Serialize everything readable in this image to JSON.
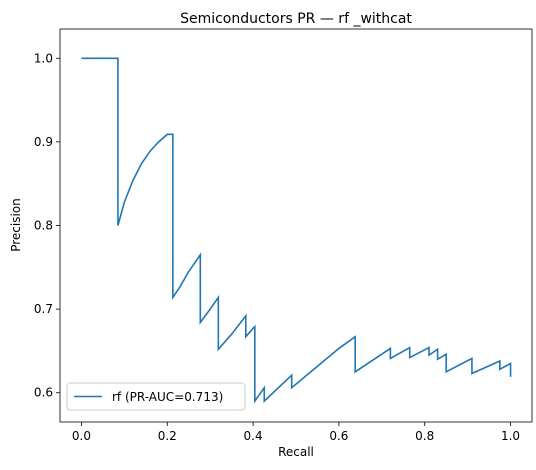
{
  "chart_data": {
    "type": "line",
    "title": "Semiconductors PR — rf _withcat",
    "xlabel": "Recall",
    "ylabel": "Precision",
    "xlim": [
      -0.05,
      1.05
    ],
    "ylim": [
      0.565,
      1.035
    ],
    "xticks": [
      0.0,
      0.2,
      0.4,
      0.6,
      0.8,
      1.0
    ],
    "xtick_labels": [
      "0.0",
      "0.2",
      "0.4",
      "0.6",
      "0.8",
      "1.0"
    ],
    "yticks": [
      0.6,
      0.7,
      0.8,
      0.9,
      1.0
    ],
    "ytick_labels": [
      "0.6",
      "0.7",
      "0.8",
      "0.9",
      "1.0"
    ],
    "grid": false,
    "legend_position": "lower-left",
    "series": [
      {
        "name": "rf (PR-AUC=0.713)",
        "color": "#1f77b4",
        "x": [
          0.0,
          0.085,
          0.085,
          0.1,
          0.12,
          0.14,
          0.16,
          0.18,
          0.2,
          0.213,
          0.213,
          0.23,
          0.25,
          0.277,
          0.277,
          0.3,
          0.319,
          0.319,
          0.35,
          0.383,
          0.383,
          0.4,
          0.404,
          0.404,
          0.426,
          0.426,
          0.49,
          0.49,
          0.6,
          0.638,
          0.638,
          0.72,
          0.72,
          0.765,
          0.765,
          0.81,
          0.81,
          0.83,
          0.83,
          0.85,
          0.85,
          0.91,
          0.91,
          0.975,
          0.975,
          1.0,
          1.0
        ],
        "y": [
          1.0,
          1.0,
          0.8,
          0.828,
          0.854,
          0.874,
          0.889,
          0.9,
          0.909,
          0.909,
          0.714,
          0.727,
          0.745,
          0.765,
          0.684,
          0.7,
          0.714,
          0.652,
          0.67,
          0.692,
          0.667,
          0.677,
          0.679,
          0.59,
          0.606,
          0.59,
          0.621,
          0.606,
          0.653,
          0.667,
          0.625,
          0.653,
          0.641,
          0.654,
          0.642,
          0.654,
          0.645,
          0.652,
          0.64,
          0.646,
          0.625,
          0.641,
          0.623,
          0.638,
          0.628,
          0.635,
          0.619
        ]
      }
    ]
  }
}
